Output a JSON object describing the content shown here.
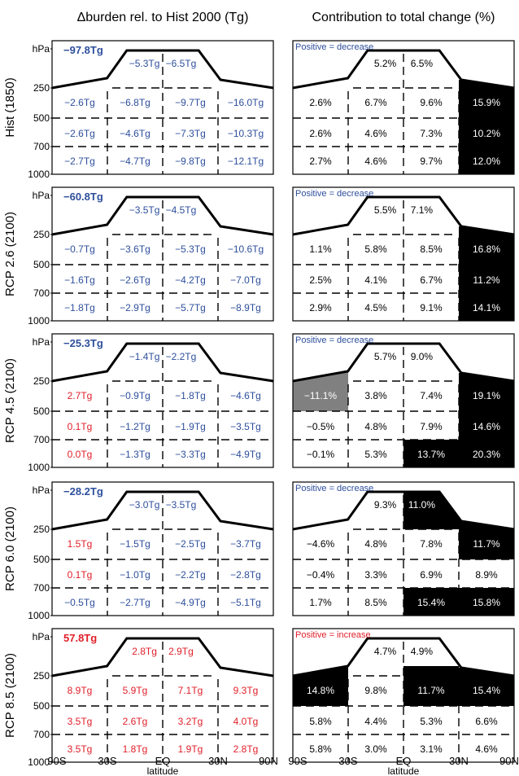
{
  "headers": {
    "left": "Δburden rel. to Hist 2000 (Tg)",
    "right": "Contribution to total change (%)"
  },
  "colors": {
    "blue": "#2e4f9c",
    "red": "#e0202a",
    "black": "#000000",
    "grey": "#808080",
    "white": "#ffffff"
  },
  "pressure_labels": [
    "hPa",
    "250",
    "500",
    "700",
    "1000"
  ],
  "x_ticks": [
    "90S",
    "30S",
    "EQ",
    "30N",
    "90N"
  ],
  "x_label": "latitude",
  "panels": [
    {
      "row_label": "Hist (1850)",
      "total": "−97.8Tg",
      "total_color": "blue",
      "note": "Positive = decrease",
      "note_color": "blue",
      "burden": {
        "top": [
          {
            "t": "−5.3Tg",
            "c": "blue"
          },
          {
            "t": "−6.5Tg",
            "c": "blue"
          }
        ],
        "r250": [
          {
            "t": "−2.6Tg",
            "c": "blue"
          },
          {
            "t": "−6.8Tg",
            "c": "blue"
          },
          {
            "t": "−9.7Tg",
            "c": "blue"
          },
          {
            "t": "−16.0Tg",
            "c": "blue"
          }
        ],
        "r500": [
          {
            "t": "−2.6Tg",
            "c": "blue"
          },
          {
            "t": "−4.6Tg",
            "c": "blue"
          },
          {
            "t": "−7.3Tg",
            "c": "blue"
          },
          {
            "t": "−10.3Tg",
            "c": "blue"
          }
        ],
        "r700": [
          {
            "t": "−2.7Tg",
            "c": "blue"
          },
          {
            "t": "−4.7Tg",
            "c": "blue"
          },
          {
            "t": "−9.8Tg",
            "c": "blue"
          },
          {
            "t": "−12.1Tg",
            "c": "blue"
          }
        ]
      },
      "contrib": {
        "top": [
          {
            "t": "5.2%",
            "f": "white"
          },
          {
            "t": "6.5%",
            "f": "white"
          }
        ],
        "r250": [
          {
            "t": "2.6%",
            "f": "white"
          },
          {
            "t": "6.7%",
            "f": "white"
          },
          {
            "t": "9.6%",
            "f": "white"
          },
          {
            "t": "15.9%",
            "f": "black"
          }
        ],
        "r500": [
          {
            "t": "2.6%",
            "f": "white"
          },
          {
            "t": "4.6%",
            "f": "white"
          },
          {
            "t": "7.3%",
            "f": "white"
          },
          {
            "t": "10.2%",
            "f": "black"
          }
        ],
        "r700": [
          {
            "t": "2.7%",
            "f": "white"
          },
          {
            "t": "4.6%",
            "f": "white"
          },
          {
            "t": "9.7%",
            "f": "white"
          },
          {
            "t": "12.0%",
            "f": "black"
          }
        ]
      }
    },
    {
      "row_label": "RCP 2.6 (2100)",
      "total": "−60.8Tg",
      "total_color": "blue",
      "note": "Positive = decrease",
      "note_color": "blue",
      "burden": {
        "top": [
          {
            "t": "−3.5Tg",
            "c": "blue"
          },
          {
            "t": "−4.5Tg",
            "c": "blue"
          }
        ],
        "r250": [
          {
            "t": "−0.7Tg",
            "c": "blue"
          },
          {
            "t": "−3.6Tg",
            "c": "blue"
          },
          {
            "t": "−5.3Tg",
            "c": "blue"
          },
          {
            "t": "−10.6Tg",
            "c": "blue"
          }
        ],
        "r500": [
          {
            "t": "−1.6Tg",
            "c": "blue"
          },
          {
            "t": "−2.6Tg",
            "c": "blue"
          },
          {
            "t": "−4.2Tg",
            "c": "blue"
          },
          {
            "t": "−7.0Tg",
            "c": "blue"
          }
        ],
        "r700": [
          {
            "t": "−1.8Tg",
            "c": "blue"
          },
          {
            "t": "−2.9Tg",
            "c": "blue"
          },
          {
            "t": "−5.7Tg",
            "c": "blue"
          },
          {
            "t": "−8.9Tg",
            "c": "blue"
          }
        ]
      },
      "contrib": {
        "top": [
          {
            "t": "5.5%",
            "f": "white"
          },
          {
            "t": "7.1%",
            "f": "white"
          }
        ],
        "r250": [
          {
            "t": "1.1%",
            "f": "white"
          },
          {
            "t": "5.8%",
            "f": "white"
          },
          {
            "t": "8.5%",
            "f": "white"
          },
          {
            "t": "16.8%",
            "f": "black"
          }
        ],
        "r500": [
          {
            "t": "2.5%",
            "f": "white"
          },
          {
            "t": "4.1%",
            "f": "white"
          },
          {
            "t": "6.7%",
            "f": "white"
          },
          {
            "t": "11.2%",
            "f": "black"
          }
        ],
        "r700": [
          {
            "t": "2.9%",
            "f": "white"
          },
          {
            "t": "4.5%",
            "f": "white"
          },
          {
            "t": "9.1%",
            "f": "white"
          },
          {
            "t": "14.1%",
            "f": "black"
          }
        ]
      }
    },
    {
      "row_label": "RCP 4.5 (2100)",
      "total": "−25.3Tg",
      "total_color": "blue",
      "note": "Positive = decrease",
      "note_color": "blue",
      "burden": {
        "top": [
          {
            "t": "−1.4Tg",
            "c": "blue"
          },
          {
            "t": "−2.2Tg",
            "c": "blue"
          }
        ],
        "r250": [
          {
            "t": "2.7Tg",
            "c": "red"
          },
          {
            "t": "−0.9Tg",
            "c": "blue"
          },
          {
            "t": "−1.8Tg",
            "c": "blue"
          },
          {
            "t": "−4.6Tg",
            "c": "blue"
          }
        ],
        "r500": [
          {
            "t": "0.1Tg",
            "c": "red"
          },
          {
            "t": "−1.2Tg",
            "c": "blue"
          },
          {
            "t": "−1.9Tg",
            "c": "blue"
          },
          {
            "t": "−3.5Tg",
            "c": "blue"
          }
        ],
        "r700": [
          {
            "t": "0.0Tg",
            "c": "red"
          },
          {
            "t": "−1.3Tg",
            "c": "blue"
          },
          {
            "t": "−3.3Tg",
            "c": "blue"
          },
          {
            "t": "−4.9Tg",
            "c": "blue"
          }
        ]
      },
      "contrib": {
        "top": [
          {
            "t": "5.7%",
            "f": "white"
          },
          {
            "t": "9.0%",
            "f": "white"
          }
        ],
        "r250": [
          {
            "t": "−11.1%",
            "f": "grey"
          },
          {
            "t": "3.8%",
            "f": "white"
          },
          {
            "t": "7.4%",
            "f": "white"
          },
          {
            "t": "19.1%",
            "f": "black"
          }
        ],
        "r500": [
          {
            "t": "−0.5%",
            "f": "white"
          },
          {
            "t": "4.8%",
            "f": "white"
          },
          {
            "t": "7.9%",
            "f": "white"
          },
          {
            "t": "14.6%",
            "f": "black"
          }
        ],
        "r700": [
          {
            "t": "−0.1%",
            "f": "white"
          },
          {
            "t": "5.3%",
            "f": "white"
          },
          {
            "t": "13.7%",
            "f": "black"
          },
          {
            "t": "20.3%",
            "f": "black"
          }
        ]
      }
    },
    {
      "row_label": "RCP 6.0 (2100)",
      "total": "−28.2Tg",
      "total_color": "blue",
      "note": "Positive = decrease",
      "note_color": "blue",
      "burden": {
        "top": [
          {
            "t": "−3.0Tg",
            "c": "blue"
          },
          {
            "t": "−3.5Tg",
            "c": "blue"
          }
        ],
        "r250": [
          {
            "t": "1.5Tg",
            "c": "red"
          },
          {
            "t": "−1.5Tg",
            "c": "blue"
          },
          {
            "t": "−2.5Tg",
            "c": "blue"
          },
          {
            "t": "−3.7Tg",
            "c": "blue"
          }
        ],
        "r500": [
          {
            "t": "0.1Tg",
            "c": "red"
          },
          {
            "t": "−1.0Tg",
            "c": "blue"
          },
          {
            "t": "−2.2Tg",
            "c": "blue"
          },
          {
            "t": "−2.8Tg",
            "c": "blue"
          }
        ],
        "r700": [
          {
            "t": "−0.5Tg",
            "c": "blue"
          },
          {
            "t": "−2.7Tg",
            "c": "blue"
          },
          {
            "t": "−4.9Tg",
            "c": "blue"
          },
          {
            "t": "−5.1Tg",
            "c": "blue"
          }
        ]
      },
      "contrib": {
        "top": [
          {
            "t": "9.3%",
            "f": "white"
          },
          {
            "t": "11.0%",
            "f": "black"
          }
        ],
        "r250": [
          {
            "t": "−4.6%",
            "f": "white"
          },
          {
            "t": "4.8%",
            "f": "white"
          },
          {
            "t": "7.8%",
            "f": "white"
          },
          {
            "t": "11.7%",
            "f": "black"
          }
        ],
        "r500": [
          {
            "t": "−0.4%",
            "f": "white"
          },
          {
            "t": "3.3%",
            "f": "white"
          },
          {
            "t": "6.9%",
            "f": "white"
          },
          {
            "t": "8.9%",
            "f": "white"
          }
        ],
        "r700": [
          {
            "t": "1.7%",
            "f": "white"
          },
          {
            "t": "8.5%",
            "f": "white"
          },
          {
            "t": "15.4%",
            "f": "black"
          },
          {
            "t": "15.8%",
            "f": "black"
          }
        ]
      }
    },
    {
      "row_label": "RCP 8.5 (2100)",
      "total": "57.8Tg",
      "total_color": "red",
      "note": "Positive = increase",
      "note_color": "red",
      "burden": {
        "top": [
          {
            "t": "2.8Tg",
            "c": "red"
          },
          {
            "t": "2.9Tg",
            "c": "red"
          }
        ],
        "r250": [
          {
            "t": "8.9Tg",
            "c": "red"
          },
          {
            "t": "5.9Tg",
            "c": "red"
          },
          {
            "t": "7.1Tg",
            "c": "red"
          },
          {
            "t": "9.3Tg",
            "c": "red"
          }
        ],
        "r500": [
          {
            "t": "3.5Tg",
            "c": "red"
          },
          {
            "t": "2.6Tg",
            "c": "red"
          },
          {
            "t": "3.2Tg",
            "c": "red"
          },
          {
            "t": "4.0Tg",
            "c": "red"
          }
        ],
        "r700": [
          {
            "t": "3.5Tg",
            "c": "red"
          },
          {
            "t": "1.8Tg",
            "c": "red"
          },
          {
            "t": "1.9Tg",
            "c": "red"
          },
          {
            "t": "2.8Tg",
            "c": "red"
          }
        ]
      },
      "contrib": {
        "top": [
          {
            "t": "4.7%",
            "f": "white"
          },
          {
            "t": "4.9%",
            "f": "white"
          }
        ],
        "r250": [
          {
            "t": "14.8%",
            "f": "black"
          },
          {
            "t": "9.8%",
            "f": "white"
          },
          {
            "t": "11.7%",
            "f": "black"
          },
          {
            "t": "15.4%",
            "f": "black"
          }
        ],
        "r500": [
          {
            "t": "5.8%",
            "f": "white"
          },
          {
            "t": "4.4%",
            "f": "white"
          },
          {
            "t": "5.3%",
            "f": "white"
          },
          {
            "t": "6.6%",
            "f": "white"
          }
        ],
        "r700": [
          {
            "t": "5.8%",
            "f": "white"
          },
          {
            "t": "3.0%",
            "f": "white"
          },
          {
            "t": "3.1%",
            "f": "white"
          },
          {
            "t": "4.6%",
            "f": "white"
          }
        ]
      }
    }
  ]
}
